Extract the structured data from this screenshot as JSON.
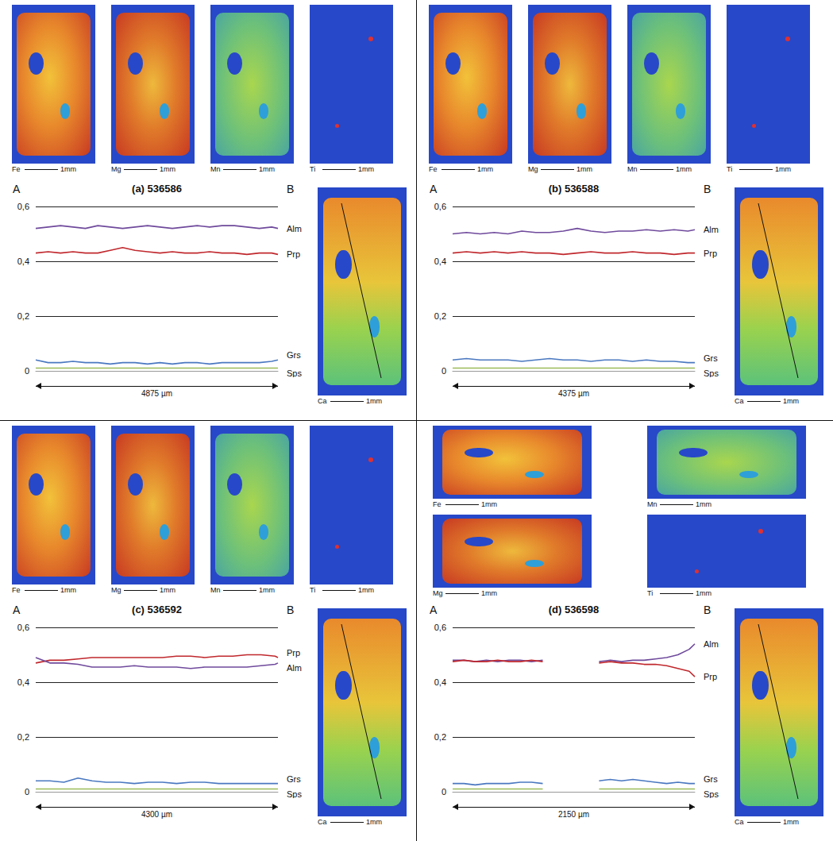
{
  "chart_data": [
    {
      "type": "line",
      "title": "(a) 536586",
      "start_label": "A",
      "end_label": "B",
      "distance_label": "4875 µm",
      "maps": [
        "Fe",
        "Mg",
        "Mn",
        "Ti"
      ],
      "profile_map": "Ca",
      "scale_label": "1mm",
      "x": [
        0,
        250,
        500,
        750,
        1000,
        1250,
        1500,
        1750,
        2000,
        2250,
        2500,
        2750,
        3000,
        3250,
        3500,
        3750,
        4000,
        4250,
        4500,
        4750,
        4875
      ],
      "xlim": [
        0,
        4875
      ],
      "ylim": [
        0,
        0.6
      ],
      "yticks": [
        0,
        {
          "value": 0.2,
          "label": "0,2"
        },
        {
          "value": 0.4,
          "label": "0,4"
        },
        {
          "value": 0.6,
          "label": "0,6"
        }
      ],
      "grid": true,
      "tick_labels": "y",
      "series": [
        {
          "name": "Alm",
          "color": "#6f4a9c",
          "values": [
            0.52,
            0.525,
            0.53,
            0.525,
            0.52,
            0.53,
            0.525,
            0.52,
            0.525,
            0.53,
            0.525,
            0.52,
            0.525,
            0.53,
            0.525,
            0.53,
            0.53,
            0.525,
            0.52,
            0.525,
            0.52
          ]
        },
        {
          "name": "Prp",
          "color": "#c0282d",
          "values": [
            0.43,
            0.435,
            0.43,
            0.435,
            0.43,
            0.43,
            0.44,
            0.45,
            0.44,
            0.435,
            0.43,
            0.435,
            0.43,
            0.43,
            0.435,
            0.43,
            0.43,
            0.425,
            0.43,
            0.43,
            0.425
          ]
        },
        {
          "name": "Grs",
          "color": "#4a78c0",
          "values": [
            0.04,
            0.03,
            0.03,
            0.035,
            0.03,
            0.03,
            0.025,
            0.03,
            0.03,
            0.025,
            0.03,
            0.025,
            0.03,
            0.03,
            0.025,
            0.03,
            0.03,
            0.03,
            0.03,
            0.035,
            0.04
          ]
        },
        {
          "name": "Sps",
          "color": "#9bbb59",
          "values": [
            0.01,
            0.01,
            0.01,
            0.01,
            0.01,
            0.01,
            0.01,
            0.01,
            0.01,
            0.01,
            0.01,
            0.01,
            0.01,
            0.01,
            0.01,
            0.01,
            0.01,
            0.01,
            0.01,
            0.01,
            0.01
          ]
        }
      ]
    },
    {
      "type": "line",
      "title": "(b) 536588",
      "start_label": "A",
      "end_label": "B",
      "distance_label": "4375 µm",
      "maps": [
        "Fe",
        "Mg",
        "Mn",
        "Ti"
      ],
      "profile_map": "Ca",
      "scale_label": "1mm",
      "x": [
        0,
        250,
        500,
        750,
        1000,
        1250,
        1500,
        1750,
        2000,
        2250,
        2500,
        2750,
        3000,
        3250,
        3500,
        3750,
        4000,
        4250,
        4375
      ],
      "xlim": [
        0,
        4375
      ],
      "ylim": [
        0,
        0.6
      ],
      "yticks": [
        0,
        {
          "value": 0.2,
          "label": "0,2"
        },
        {
          "value": 0.4,
          "label": "0,4"
        },
        {
          "value": 0.6,
          "label": "0,6"
        }
      ],
      "grid": true,
      "tick_labels": "y",
      "series": [
        {
          "name": "Alm",
          "color": "#6f4a9c",
          "values": [
            0.5,
            0.505,
            0.5,
            0.505,
            0.5,
            0.51,
            0.505,
            0.505,
            0.51,
            0.52,
            0.51,
            0.505,
            0.51,
            0.51,
            0.515,
            0.51,
            0.515,
            0.51,
            0.515
          ]
        },
        {
          "name": "Prp",
          "color": "#c0282d",
          "values": [
            0.43,
            0.435,
            0.43,
            0.435,
            0.43,
            0.435,
            0.43,
            0.43,
            0.425,
            0.43,
            0.435,
            0.43,
            0.43,
            0.435,
            0.43,
            0.43,
            0.425,
            0.43,
            0.43
          ]
        },
        {
          "name": "Grs",
          "color": "#4a78c0",
          "values": [
            0.04,
            0.045,
            0.04,
            0.04,
            0.04,
            0.035,
            0.04,
            0.045,
            0.04,
            0.04,
            0.035,
            0.04,
            0.04,
            0.035,
            0.04,
            0.035,
            0.035,
            0.03,
            0.03
          ]
        },
        {
          "name": "Sps",
          "color": "#9bbb59",
          "values": [
            0.01,
            0.01,
            0.01,
            0.01,
            0.01,
            0.01,
            0.01,
            0.01,
            0.01,
            0.01,
            0.01,
            0.01,
            0.01,
            0.01,
            0.01,
            0.01,
            0.01,
            0.01,
            0.01
          ]
        }
      ]
    },
    {
      "type": "line",
      "title": "(c) 536592",
      "start_label": "A",
      "end_label": "B",
      "distance_label": "4300 µm",
      "maps": [
        "Fe",
        "Mg",
        "Mn",
        "Ti"
      ],
      "profile_map": "Ca",
      "scale_label": "1mm",
      "x": [
        0,
        250,
        500,
        750,
        1000,
        1250,
        1500,
        1750,
        2000,
        2250,
        2500,
        2750,
        3000,
        3250,
        3500,
        3750,
        4000,
        4250,
        4300
      ],
      "xlim": [
        0,
        4300
      ],
      "ylim": [
        0,
        0.6
      ],
      "yticks": [
        0,
        {
          "value": 0.2,
          "label": "0,2"
        },
        {
          "value": 0.4,
          "label": "0,4"
        },
        {
          "value": 0.6,
          "label": "0,6"
        }
      ],
      "grid": true,
      "tick_labels": "y",
      "series": [
        {
          "name": "Prp",
          "color": "#c0282d",
          "values": [
            0.47,
            0.48,
            0.48,
            0.485,
            0.49,
            0.49,
            0.49,
            0.49,
            0.49,
            0.49,
            0.495,
            0.495,
            0.49,
            0.495,
            0.495,
            0.5,
            0.5,
            0.495,
            0.49
          ]
        },
        {
          "name": "Alm",
          "color": "#6f4a9c",
          "values": [
            0.49,
            0.47,
            0.47,
            0.465,
            0.455,
            0.455,
            0.455,
            0.46,
            0.455,
            0.455,
            0.455,
            0.45,
            0.455,
            0.455,
            0.455,
            0.455,
            0.46,
            0.465,
            0.47
          ]
        },
        {
          "name": "Grs",
          "color": "#4a78c0",
          "values": [
            0.04,
            0.04,
            0.035,
            0.05,
            0.04,
            0.035,
            0.035,
            0.03,
            0.035,
            0.035,
            0.03,
            0.035,
            0.035,
            0.03,
            0.03,
            0.03,
            0.03,
            0.03,
            0.03
          ]
        },
        {
          "name": "Sps",
          "color": "#9bbb59",
          "values": [
            0.01,
            0.01,
            0.01,
            0.01,
            0.01,
            0.01,
            0.01,
            0.01,
            0.01,
            0.01,
            0.01,
            0.01,
            0.01,
            0.01,
            0.01,
            0.01,
            0.01,
            0.01,
            0.01
          ]
        }
      ]
    },
    {
      "type": "line",
      "title": "(d) 536598",
      "start_label": "A",
      "end_label": "B",
      "distance_label": "2150 µm",
      "maps": [
        "Fe",
        "Mg",
        "Mn",
        "Ti"
      ],
      "profile_map": "Ca",
      "scale_label": "1mm",
      "x": [
        0,
        100,
        200,
        300,
        400,
        500,
        600,
        700,
        800,
        900,
        1000,
        1100,
        1200,
        1300,
        1400,
        1500,
        1600,
        1700,
        1800,
        1900,
        2000,
        2100,
        2150
      ],
      "xlim": [
        0,
        2150
      ],
      "ylim": [
        0,
        0.6
      ],
      "yticks": [
        0,
        {
          "value": 0.2,
          "label": "0,2"
        },
        {
          "value": 0.4,
          "label": "0,4"
        },
        {
          "value": 0.6,
          "label": "0,6"
        }
      ],
      "grid": true,
      "tick_labels": "y",
      "series": [
        {
          "name": "Alm",
          "color": "#6f4a9c",
          "values": [
            0.48,
            0.48,
            0.475,
            0.48,
            0.475,
            0.48,
            0.48,
            0.475,
            0.48,
            null,
            null,
            null,
            null,
            0.475,
            0.48,
            0.475,
            0.48,
            0.48,
            0.485,
            0.49,
            0.5,
            0.52,
            0.54
          ]
        },
        {
          "name": "Prp",
          "color": "#c0282d",
          "values": [
            0.475,
            0.48,
            0.475,
            0.475,
            0.48,
            0.475,
            0.475,
            0.48,
            0.475,
            null,
            null,
            null,
            null,
            0.47,
            0.475,
            0.47,
            0.47,
            0.465,
            0.465,
            0.46,
            0.45,
            0.44,
            0.42
          ]
        },
        {
          "name": "Grs",
          "color": "#4a78c0",
          "values": [
            0.03,
            0.03,
            0.025,
            0.03,
            0.03,
            0.03,
            0.035,
            0.035,
            0.03,
            null,
            null,
            null,
            null,
            0.04,
            0.045,
            0.04,
            0.045,
            0.04,
            0.035,
            0.03,
            0.035,
            0.03,
            0.03
          ]
        },
        {
          "name": "Sps",
          "color": "#9bbb59",
          "values": [
            0.01,
            0.01,
            0.01,
            0.01,
            0.01,
            0.01,
            0.01,
            0.01,
            0.01,
            null,
            null,
            null,
            null,
            0.01,
            0.01,
            0.01,
            0.01,
            0.01,
            0.01,
            0.01,
            0.01,
            0.01,
            0.01
          ]
        }
      ]
    }
  ]
}
